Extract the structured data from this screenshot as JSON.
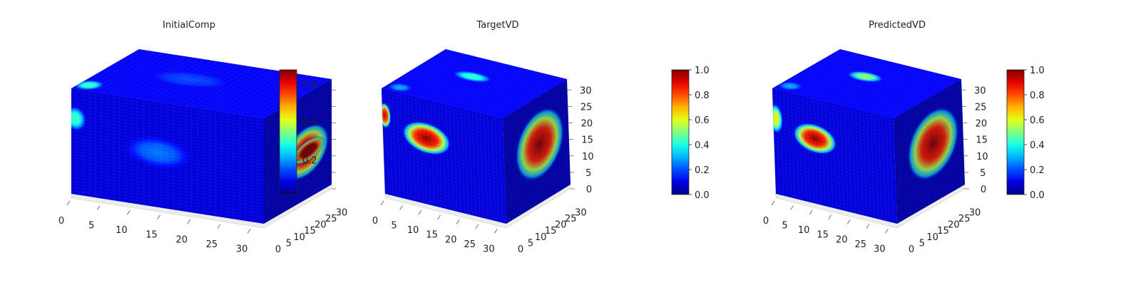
{
  "chart_data": [
    {
      "type": "heatmap",
      "subtype": "3d-voxel-cube",
      "title": "InitialComp",
      "grid_size": 32,
      "axes": {
        "x": {
          "ticks": [
            0,
            5,
            10,
            15,
            20,
            25,
            30
          ],
          "range": [
            0,
            32
          ]
        },
        "y": {
          "ticks": [
            0,
            5,
            10,
            15,
            20,
            25,
            30
          ],
          "range": [
            0,
            32
          ]
        },
        "z": {
          "ticks": [],
          "range": [
            0,
            32
          ]
        }
      },
      "colormap": "jet",
      "colorbar": {
        "ticks": [
          0.2,
          0.4,
          0.6
        ],
        "range": [
          0.02,
          0.67
        ]
      },
      "blobs": [
        {
          "face": "front",
          "u": 0.45,
          "v": 0.52,
          "ru": 0.2,
          "rv": 0.17,
          "value": 0.18
        },
        {
          "face": "front",
          "u": 0.02,
          "v": 0.72,
          "ru": 0.06,
          "rv": 0.12,
          "value": 0.32
        },
        {
          "face": "top",
          "u": 0.42,
          "v": 0.55,
          "ru": 0.26,
          "rv": 0.22,
          "value": 0.15
        },
        {
          "face": "top",
          "u": 0.05,
          "v": 0.12,
          "ru": 0.07,
          "rv": 0.12,
          "value": 0.32
        },
        {
          "face": "side",
          "u": 0.62,
          "v": 0.45,
          "ru": 0.34,
          "rv": 0.24,
          "value": 0.68,
          "rot": -0.55
        },
        {
          "face": "side",
          "u": 0.66,
          "v": 0.45,
          "ru": 0.24,
          "rv": 0.1,
          "value": 0.9,
          "rot": -0.55
        }
      ]
    },
    {
      "type": "heatmap",
      "subtype": "3d-voxel-cube",
      "title": "TargetVD",
      "grid_size": 32,
      "axes": {
        "x": {
          "ticks": [
            0,
            5,
            10,
            15,
            20,
            25,
            30
          ],
          "range": [
            0,
            32
          ]
        },
        "y": {
          "ticks": [
            0,
            5,
            10,
            15,
            20,
            25,
            30
          ],
          "range": [
            0,
            32
          ]
        },
        "z": {
          "ticks": [
            0,
            5,
            10,
            15,
            20,
            25,
            30
          ],
          "range": [
            0,
            32
          ]
        }
      },
      "colormap": "jet",
      "colorbar": {
        "ticks": [
          0.0,
          0.2,
          0.4,
          0.6,
          0.8,
          1.0
        ],
        "range": [
          0,
          1
        ]
      },
      "blobs": [
        {
          "face": "front",
          "u": 0.36,
          "v": 0.63,
          "ru": 0.2,
          "rv": 0.15,
          "value": 1.0,
          "rot": 0.25
        },
        {
          "face": "front",
          "u": 0.02,
          "v": 0.75,
          "ru": 0.05,
          "rv": 0.12,
          "value": 0.95
        },
        {
          "face": "top",
          "u": 0.42,
          "v": 0.62,
          "ru": 0.16,
          "rv": 0.1,
          "value": 0.45
        },
        {
          "face": "top",
          "u": 0.1,
          "v": 0.1,
          "ru": 0.1,
          "rv": 0.1,
          "value": 0.3
        },
        {
          "face": "side",
          "u": 0.55,
          "v": 0.55,
          "ru": 0.38,
          "rv": 0.32,
          "value": 1.0,
          "rot": -0.5
        }
      ]
    },
    {
      "type": "heatmap",
      "subtype": "3d-voxel-cube",
      "title": "PredictedVD",
      "grid_size": 32,
      "axes": {
        "x": {
          "ticks": [
            0,
            5,
            10,
            15,
            20,
            25,
            30
          ],
          "range": [
            0,
            32
          ]
        },
        "y": {
          "ticks": [
            0,
            5,
            10,
            15,
            20,
            25,
            30
          ],
          "range": [
            0,
            32
          ]
        },
        "z": {
          "ticks": [
            0,
            5,
            10,
            15,
            20,
            25,
            30
          ],
          "range": [
            0,
            32
          ]
        }
      },
      "colormap": "jet",
      "colorbar": {
        "ticks": [
          0.0,
          0.2,
          0.4,
          0.6,
          0.8,
          1.0
        ],
        "range": [
          0,
          1
        ]
      },
      "blobs": [
        {
          "face": "front",
          "u": 0.34,
          "v": 0.62,
          "ru": 0.18,
          "rv": 0.14,
          "value": 1.0,
          "rot": 0.25
        },
        {
          "face": "front",
          "u": 0.02,
          "v": 0.72,
          "ru": 0.06,
          "rv": 0.14,
          "value": 0.65
        },
        {
          "face": "top",
          "u": 0.42,
          "v": 0.62,
          "ru": 0.14,
          "rv": 0.1,
          "value": 0.55
        },
        {
          "face": "top",
          "u": 0.08,
          "v": 0.12,
          "ru": 0.1,
          "rv": 0.1,
          "value": 0.3
        },
        {
          "face": "side",
          "u": 0.56,
          "v": 0.55,
          "ru": 0.38,
          "rv": 0.32,
          "value": 1.0,
          "rot": -0.5
        }
      ]
    }
  ]
}
